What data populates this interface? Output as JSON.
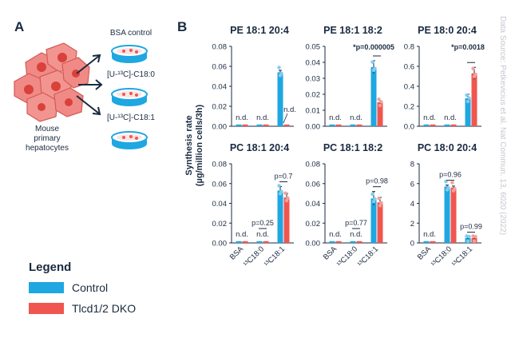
{
  "panel_a": {
    "letter": "A",
    "cells_label": [
      "Mouse",
      "primary",
      "hepatocytes"
    ],
    "treatments": [
      "BSA control",
      "[U-¹³C]-C18:0",
      "[U-¹³C]-C18:1"
    ]
  },
  "panel_b": {
    "letter": "B"
  },
  "legend": {
    "title": "Legend",
    "items": [
      {
        "label": "Control",
        "color": "#1ea7e1"
      },
      {
        "label": "Tlcd1/2 DKO",
        "color": "#f0564f"
      }
    ]
  },
  "source_note": "Data Source: Petkevicius et al. Nat Commun. 13, 6020 (2022)",
  "colors": {
    "control": "#1ea7e1",
    "dko": "#f0564f",
    "dot_control": "#7fcdef",
    "dot_dko": "#f5a09b"
  },
  "chart_data": {
    "type": "bar",
    "ylabel": "Synthesis rate (µg/million cells/3h)",
    "categories": [
      "BSA",
      "¹³C18:0",
      "¹³C18:1"
    ],
    "series_names": [
      "Control",
      "Tlcd1/2 DKO"
    ],
    "panels": [
      {
        "title": "PE 18:1 20:4",
        "ylim": [
          0,
          0.08
        ],
        "ticks": [
          "0.00",
          "0.02",
          "0.04",
          "0.06",
          "0.08"
        ],
        "control": [
          0,
          0,
          0.054
        ],
        "dko": [
          0,
          0,
          0
        ],
        "err_control": [
          0,
          0,
          0.002
        ],
        "err_dko": [
          0,
          0,
          0
        ],
        "annotations": [
          {
            "text": "n.d.",
            "group": 0
          },
          {
            "text": "n.d.",
            "group": 1
          },
          {
            "text": "n.d.",
            "group": 2,
            "series": "dko"
          }
        ],
        "significance": null
      },
      {
        "title": "PE 18:1 18:2",
        "ylim": [
          0,
          0.05
        ],
        "ticks": [
          "0.00",
          "0.01",
          "0.02",
          "0.03",
          "0.04",
          "0.05"
        ],
        "control": [
          0,
          0,
          0.037
        ],
        "dko": [
          0,
          0,
          0.015
        ],
        "err_control": [
          0,
          0,
          0.004
        ],
        "err_dko": [
          0,
          0,
          0.001
        ],
        "annotations": [
          {
            "text": "n.d.",
            "group": 0
          },
          {
            "text": "n.d.",
            "group": 1
          }
        ],
        "significance": "*p=0.000005"
      },
      {
        "title": "PE 18:0 20:4",
        "ylim": [
          0,
          0.8
        ],
        "ticks": [
          "0.0",
          "0.2",
          "0.4",
          "0.6",
          "0.8"
        ],
        "control": [
          0,
          0,
          0.28
        ],
        "dko": [
          0,
          0,
          0.53
        ],
        "err_control": [
          0,
          0,
          0.04
        ],
        "err_dko": [
          0,
          0,
          0.06
        ],
        "annotations": [
          {
            "text": "n.d.",
            "group": 0
          },
          {
            "text": "n.d.",
            "group": 1
          }
        ],
        "significance": "*p=0.0018"
      },
      {
        "title": "PC 18:1 20:4",
        "ylim": [
          0,
          0.08
        ],
        "ticks": [
          "0.00",
          "0.02",
          "0.04",
          "0.06",
          "0.08"
        ],
        "control": [
          0,
          0,
          0.053
        ],
        "dko": [
          0,
          0,
          0.046
        ],
        "err_control": [
          0,
          0,
          0.004
        ],
        "err_dko": [
          0,
          0,
          0.004
        ],
        "annotations": [
          {
            "text": "n.d.",
            "group": 0
          },
          {
            "text": "n.d.",
            "group": 1
          }
        ],
        "pvals": [
          {
            "text": "p=0.25",
            "group": 1
          },
          {
            "text": "p=0.7",
            "group": 2
          }
        ],
        "significance": null
      },
      {
        "title": "PC 18:1 18:2",
        "ylim": [
          0,
          0.08
        ],
        "ticks": [
          "0.00",
          "0.02",
          "0.04",
          "0.06",
          "0.08"
        ],
        "control": [
          0,
          0,
          0.045
        ],
        "dko": [
          0,
          0,
          0.041
        ],
        "err_control": [
          0,
          0,
          0.007
        ],
        "err_dko": [
          0,
          0,
          0.005
        ],
        "annotations": [
          {
            "text": "n.d.",
            "group": 0
          },
          {
            "text": "n.d.",
            "group": 1
          }
        ],
        "pvals": [
          {
            "text": "p=0.77",
            "group": 1
          },
          {
            "text": "p=0.98",
            "group": 2
          }
        ],
        "significance": null
      },
      {
        "title": "PC 18:0 20:4",
        "ylim": [
          0,
          8
        ],
        "ticks": [
          "0",
          "2",
          "4",
          "6",
          "8"
        ],
        "control": [
          0,
          5.7,
          0.5
        ],
        "dko": [
          0,
          5.6,
          0.5
        ],
        "err_control": [
          0,
          0.15,
          0.1
        ],
        "err_dko": [
          0,
          0.15,
          0.1
        ],
        "annotations": [
          {
            "text": "n.d.",
            "group": 0
          }
        ],
        "pvals": [
          {
            "text": "p=0.96",
            "group": 1
          },
          {
            "text": "p=0.99",
            "group": 2
          }
        ],
        "significance": null
      }
    ]
  }
}
